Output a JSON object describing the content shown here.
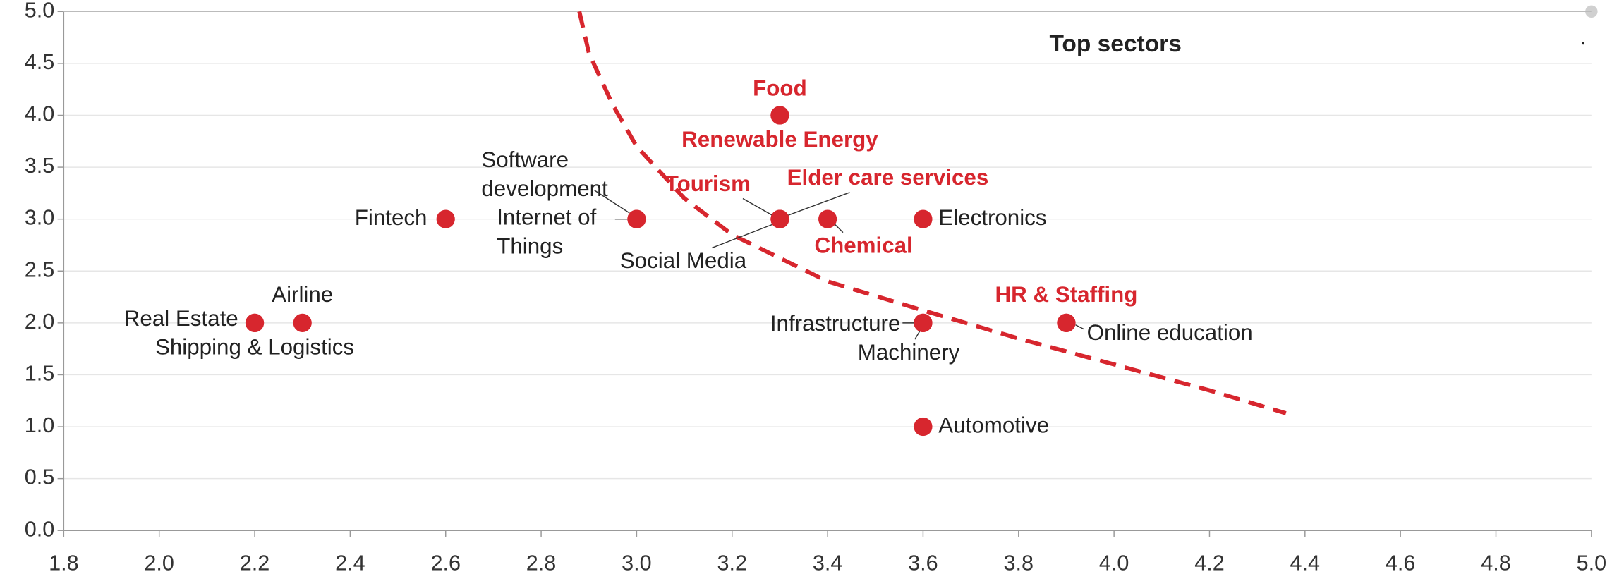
{
  "chart_data": {
    "type": "scatter",
    "annotation": "Top sectors",
    "color": "#d7262e",
    "top_color": "#d7262e",
    "points": [
      {
        "name": "Real Estate",
        "x": 2.2,
        "y": 2.0,
        "top": false
      },
      {
        "name": "Shipping & Logistics",
        "x": 2.2,
        "y": 2.0,
        "top": false
      },
      {
        "name": "Airline",
        "x": 2.3,
        "y": 2.0,
        "top": false
      },
      {
        "name": "Fintech",
        "x": 2.6,
        "y": 3.0,
        "top": false
      },
      {
        "name": "Software development",
        "x": 3.0,
        "y": 3.0,
        "top": false
      },
      {
        "name": "Internet of Things",
        "x": 3.0,
        "y": 3.0,
        "top": false
      },
      {
        "name": "Tourism",
        "x": 3.3,
        "y": 3.0,
        "top": true
      },
      {
        "name": "Social Media",
        "x": 3.3,
        "y": 3.0,
        "top": false
      },
      {
        "name": "Elder care services",
        "x": 3.3,
        "y": 3.0,
        "top": true
      },
      {
        "name": "Food",
        "x": 3.3,
        "y": 4.0,
        "top": true
      },
      {
        "name": "Renewable Energy",
        "x": 3.3,
        "y": 4.0,
        "top": true
      },
      {
        "name": "Chemical",
        "x": 3.4,
        "y": 3.0,
        "top": true
      },
      {
        "name": "Electronics",
        "x": 3.6,
        "y": 3.0,
        "top": false
      },
      {
        "name": "Infrastructure",
        "x": 3.6,
        "y": 2.0,
        "top": false
      },
      {
        "name": "Machinery",
        "x": 3.6,
        "y": 2.0,
        "top": false
      },
      {
        "name": "HR & Staffing",
        "x": 3.9,
        "y": 2.0,
        "top": true
      },
      {
        "name": "Online education",
        "x": 3.9,
        "y": 2.0,
        "top": false
      },
      {
        "name": "Automotive",
        "x": 3.6,
        "y": 1.0,
        "top": false
      }
    ],
    "curve": {
      "x": [
        2.88,
        2.9,
        2.95,
        3.0,
        3.1,
        3.2,
        3.4,
        3.6,
        3.8,
        4.0,
        4.2,
        4.36
      ],
      "y": [
        5.0,
        4.6,
        4.1,
        3.7,
        3.2,
        2.85,
        2.4,
        2.12,
        1.85,
        1.6,
        1.35,
        1.13
      ],
      "dashed": true
    },
    "xlim": [
      1.8,
      5.0
    ],
    "xticks": [
      1.8,
      {
        "value": 2.0,
        "label": "2.0"
      },
      2.2,
      2.4,
      2.6,
      2.8,
      {
        "value": 3.0,
        "label": "3.0"
      },
      3.2,
      3.4,
      3.6,
      3.8,
      {
        "value": 4.0,
        "label": "4.0"
      },
      4.2,
      4.4,
      4.6,
      4.8,
      {
        "value": 5.0,
        "label": "5.0"
      }
    ],
    "ylim": [
      0,
      5
    ],
    "yticks": [
      {
        "value": 0,
        "label": "0.0"
      },
      0.5,
      {
        "value": 1,
        "label": "1.0"
      },
      1.5,
      {
        "value": 2,
        "label": "2.0"
      },
      2.5,
      {
        "value": 3,
        "label": "3.0"
      },
      3.5,
      {
        "value": 4,
        "label": "4.0"
      },
      4.5,
      {
        "value": 5,
        "label": "5.0"
      }
    ],
    "grid": true
  }
}
